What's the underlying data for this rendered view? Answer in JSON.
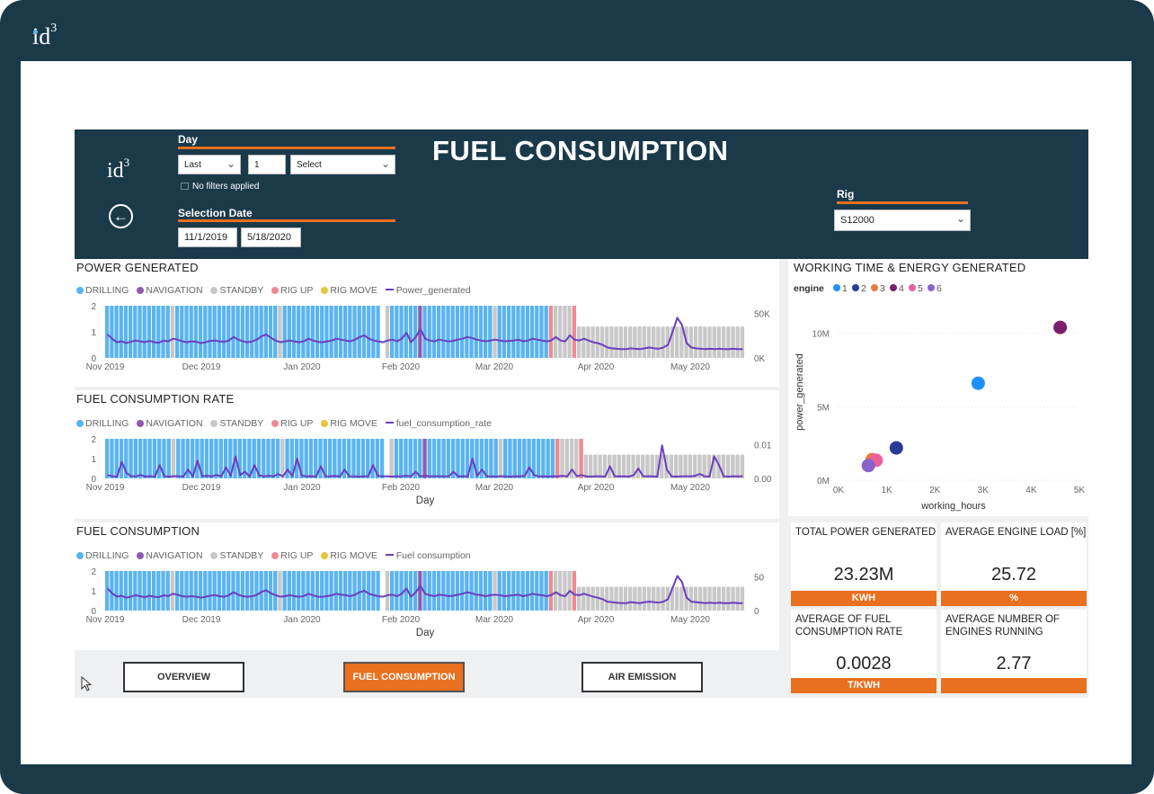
{
  "brand": {
    "logo_text": "id",
    "logo_sup": "3"
  },
  "header": {
    "title": "FUEL CONSUMPTION",
    "day_filter": {
      "label": "Day",
      "mode": "Last",
      "count": "1",
      "unit": "Select",
      "status": "No filters applied"
    },
    "selection_date": {
      "label": "Selection Date",
      "start": "11/1/2019",
      "end": "5/18/2020"
    },
    "rig_filter": {
      "label": "Rig",
      "value": "S12000"
    }
  },
  "colors": {
    "drilling": "#5ab4f0",
    "navigation": "#8e5bb0",
    "standby": "#c8c8c8",
    "rig_up": "#ef8a93",
    "rig_move": "#e6c53a",
    "line": "#6a3fbf",
    "accent": "#e8701f",
    "header_bg": "#1a3a4a"
  },
  "legend": {
    "drilling": "DRILLING",
    "navigation": "NAVIGATION",
    "standby": "STANDBY",
    "rig_up": "RIG UP",
    "rig_move": "RIG MOVE"
  },
  "x_ticks": [
    "Nov 2019",
    "Dec 2019",
    "Jan 2020",
    "Feb 2020",
    "Mar 2020",
    "Apr 2020",
    "May 2020"
  ],
  "chart_data": [
    {
      "type": "bar",
      "title": "POWER GENERATED",
      "line_series_name": "Power_generated",
      "xlabel": "",
      "left_ticks": [
        "2",
        "1",
        "0"
      ],
      "right_ticks": [
        "50K",
        "0K"
      ],
      "ylim_left": [
        0,
        2
      ],
      "ylim_right": [
        0,
        60000
      ],
      "line_values": [
        27000,
        22000,
        18000,
        19000,
        17000,
        18500,
        20000,
        19000,
        18000,
        19500,
        18000,
        17500,
        20000,
        19000,
        22000,
        21000,
        19000,
        18000,
        19000,
        18500,
        17000,
        18000,
        19500,
        20000,
        19000,
        18500,
        20000,
        24000,
        21000,
        19000,
        18000,
        19000,
        21000,
        25000,
        27000,
        23000,
        20000,
        18000,
        19000,
        20000,
        19000,
        18000,
        19000,
        22000,
        20000,
        18500,
        18000,
        19000,
        20000,
        22000,
        21000,
        20000,
        19000,
        21000,
        24000,
        26000,
        22000,
        20000,
        19000,
        18000,
        20000,
        21000,
        19000,
        22000,
        29000,
        18000,
        24000,
        33000,
        22000,
        20000,
        19000,
        21000,
        20000,
        19000,
        19500,
        21000,
        22000,
        24000,
        23000,
        21000,
        20000,
        19000,
        20000,
        21000,
        20000,
        19000,
        19500,
        20000,
        21000,
        19000,
        20000,
        22000,
        21000,
        20000,
        19000,
        20000,
        24000,
        20000,
        19000,
        26000,
        21000,
        20000,
        22000,
        20000,
        18000,
        17000,
        15000,
        12000,
        11000,
        10500,
        10000,
        10000,
        11000,
        10500,
        10000,
        11000,
        12000,
        11000,
        10500,
        12000,
        15000,
        30000,
        46000,
        38000,
        17000,
        12000,
        11000,
        10500,
        10000,
        10500,
        10000,
        10500,
        10000,
        10000,
        10500,
        10000,
        10000
      ]
    },
    {
      "type": "bar",
      "title": "FUEL CONSUMPTION RATE",
      "line_series_name": "fuel_consumption_rate",
      "xlabel": "Day",
      "left_ticks": [
        "2",
        "1",
        "0"
      ],
      "right_ticks": [
        "0.01",
        "0.00"
      ],
      "ylim_left": [
        0,
        2
      ],
      "ylim_right": [
        0,
        0.018
      ],
      "line_values": [
        0.0015,
        0.001,
        0.0008,
        0.0075,
        0.0025,
        0.001,
        0.001,
        0.0015,
        0.0008,
        0.001,
        0.0008,
        0.006,
        0.001,
        0.0008,
        0.001,
        0.001,
        0.0008,
        0.004,
        0.0008,
        0.008,
        0.001,
        0.0012,
        0.0009,
        0.0015,
        0.001,
        0.005,
        0.0012,
        0.01,
        0.0015,
        0.003,
        0.0008,
        0.006,
        0.0014,
        0.0009,
        0.0012,
        0.0009,
        0.002,
        0.0009,
        0.004,
        0.001,
        0.009,
        0.0012,
        0.0009,
        0.001,
        0.0008,
        0.0055,
        0.001,
        0.0009,
        0.0012,
        0.0008,
        0.004,
        0.001,
        0.0009,
        0.0008,
        0.001,
        0.0009,
        0.006,
        0.0012,
        0.0009,
        0.001,
        0.0008,
        0.001,
        0.0009,
        0.0012,
        0.0009,
        0.003,
        0.0009,
        0.0012,
        0.0009,
        0.001,
        0.001,
        0.0009,
        0.001,
        0.003,
        0.0009,
        0.001,
        0.0009,
        0.009,
        0.0012,
        0.004,
        0.001,
        0.0009,
        0.0008,
        0.001,
        0.0009,
        0.0008,
        0.001,
        0.0009,
        0.0012,
        0.005,
        0.0015,
        0.0009,
        0.001,
        0.0008,
        0.001,
        0.0009,
        0.0012,
        0.0009,
        0.004,
        0.001,
        0.0015,
        0.0009,
        0.0008,
        0.001,
        0.0009,
        0.0008,
        0.0055,
        0.0009,
        0.001,
        0.0009,
        0.0008,
        0.0015,
        0.0045,
        0.0009,
        0.001,
        0.0009,
        0.0008,
        0.015,
        0.004,
        0.0009,
        0.0008,
        0.0009,
        0.001,
        0.0009,
        0.0012,
        0.002,
        0.0009,
        0.0008,
        0.01,
        0.006,
        0.0009,
        0.0008,
        0.001,
        0.0009,
        0.001
      ]
    },
    {
      "type": "bar",
      "title": "FUEL CONSUMPTION",
      "line_series_name": "Fuel consumption",
      "xlabel": "Day",
      "left_ticks": [
        "2",
        "1",
        "0"
      ],
      "right_ticks": [
        "50",
        "0"
      ],
      "ylim_left": [
        0,
        2
      ],
      "ylim_right": [
        0,
        80
      ],
      "line_values": [
        45,
        35,
        28,
        30,
        26,
        28,
        31,
        29,
        27,
        30,
        28,
        27,
        31,
        29,
        34,
        32,
        29,
        28,
        29,
        28,
        26,
        28,
        30,
        31,
        29,
        28,
        31,
        37,
        32,
        29,
        28,
        29,
        32,
        38,
        41,
        35,
        31,
        28,
        29,
        31,
        29,
        28,
        29,
        34,
        31,
        28,
        28,
        29,
        31,
        34,
        32,
        31,
        29,
        32,
        37,
        40,
        34,
        31,
        29,
        28,
        31,
        32,
        29,
        34,
        45,
        28,
        37,
        50,
        34,
        31,
        29,
        32,
        31,
        29,
        30,
        32,
        34,
        37,
        35,
        32,
        31,
        29,
        31,
        32,
        31,
        29,
        30,
        31,
        32,
        29,
        31,
        34,
        32,
        31,
        29,
        31,
        37,
        31,
        29,
        40,
        32,
        31,
        34,
        31,
        28,
        26,
        23,
        18,
        17,
        16,
        15,
        15,
        17,
        16,
        15,
        17,
        18,
        17,
        16,
        18,
        23,
        46,
        70,
        58,
        26,
        18,
        17,
        16,
        15,
        16,
        15,
        16,
        15,
        15,
        16,
        15,
        15
      ]
    },
    {
      "type": "scatter",
      "title": "WORKING TIME & ENERGY GENERATED",
      "xlabel": "working_hours",
      "ylabel": "power_generated",
      "legend_title": "engine",
      "x_ticks": [
        "0K",
        "1K",
        "2K",
        "3K",
        "4K",
        "5K"
      ],
      "y_ticks": [
        "10M",
        "5M",
        "0M"
      ],
      "xlim": [
        0,
        5000
      ],
      "ylim": [
        0,
        12000000
      ],
      "series": [
        {
          "name": "1",
          "color": "#1e90ff",
          "x": [
            2900
          ],
          "y": [
            6600000
          ]
        },
        {
          "name": "2",
          "color": "#2a3a99",
          "x": [
            1200
          ],
          "y": [
            2200000
          ]
        },
        {
          "name": "3",
          "color": "#e87a3a",
          "x": [
            700
          ],
          "y": [
            1400000
          ]
        },
        {
          "name": "4",
          "color": "#7b1f6a",
          "x": [
            4600
          ],
          "y": [
            10400000
          ]
        },
        {
          "name": "5",
          "color": "#ea5fa0",
          "x": [
            780
          ],
          "y": [
            1350000
          ]
        },
        {
          "name": "6",
          "color": "#8a62c9",
          "x": [
            620
          ],
          "y": [
            1000000
          ]
        }
      ]
    }
  ],
  "kpis": [
    {
      "title": "TOTAL POWER GENERATED",
      "value": "23.23M",
      "unit": "KWH"
    },
    {
      "title": "AVERAGE ENGINE LOAD [%]",
      "value": "25.72",
      "unit": "%"
    },
    {
      "title": "AVERAGE OF FUEL CONSUMPTION RATE",
      "value": "0.0028",
      "unit": "T/KWH"
    },
    {
      "title": "AVERAGE NUMBER OF ENGINES RUNNING",
      "value": "2.77",
      "unit": ""
    }
  ],
  "nav": {
    "overview": "OVERVIEW",
    "fuel": "FUEL CONSUMPTION",
    "air": "AIR EMISSION"
  }
}
